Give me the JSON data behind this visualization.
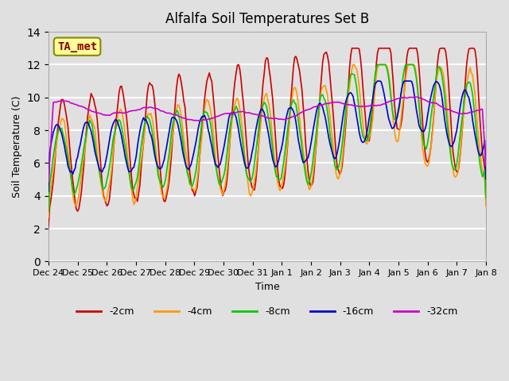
{
  "title": "Alfalfa Soil Temperatures Set B",
  "xlabel": "Time",
  "ylabel": "Soil Temperature (C)",
  "ylim": [
    0,
    14
  ],
  "yticks": [
    0,
    2,
    4,
    6,
    8,
    10,
    12,
    14
  ],
  "xtick_labels": [
    "Dec 24",
    "Dec 25",
    "Dec 26",
    "Dec 27",
    "Dec 28",
    "Dec 29",
    "Dec 30",
    "Dec 31",
    "Jan 1",
    "Jan 2",
    "Jan 3",
    "Jan 4",
    "Jan 5",
    "Jan 6",
    "Jan 7",
    "Jan 8"
  ],
  "background_color": "#e0e0e0",
  "plot_bg_color": "#e0e0e0",
  "grid_color": "#ffffff",
  "line_colors": {
    "2cm": "#cc0000",
    "4cm": "#ff9900",
    "8cm": "#00cc00",
    "16cm": "#0000cc",
    "32cm": "#cc00cc"
  },
  "legend_labels": [
    "-2cm",
    "-4cm",
    "-8cm",
    "-16cm",
    "-32cm"
  ],
  "annotation_text": "TA_met",
  "annotation_bg": "#ffff99",
  "annotation_border": "#888800"
}
